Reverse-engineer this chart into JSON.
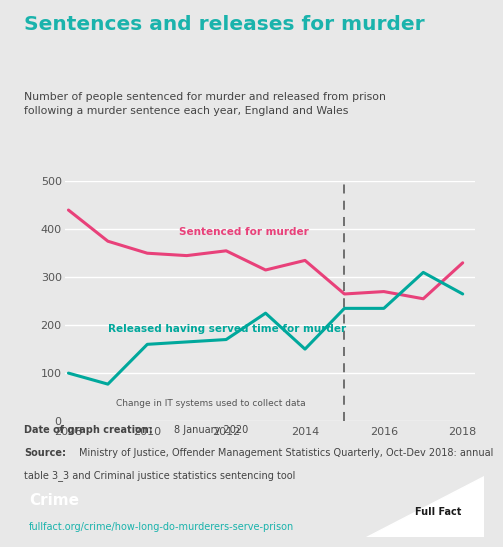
{
  "title": "Sentences and releases for murder",
  "subtitle": "Number of people sentenced for murder and released from prison\nfollowing a murder sentence each year, England and Wales",
  "title_color": "#1ab3ac",
  "subtitle_color": "#444444",
  "bg_color": "#e8e8e8",
  "chart_bg_color": "#e8e8e8",
  "footer_bg_color": "#1a1a1a",
  "footer_text_color": "#ffffff",
  "footer_url_color": "#1ab3ac",
  "footer_crime_label": "Crime",
  "footer_url": "fullfact.org/crime/how-long-do-murderers-serve-prison",
  "date_label": "Date of graph creation:",
  "date_value": "8 January 2020",
  "source_line1": "Date of graph creation: 8 January 2020",
  "source_line2": "Source: Ministry of Justice, Offender Management Statistics Quarterly, Oct-Dev 2018: annual",
  "source_line3": "table 3_3 and Criminal justice statistics sentencing tool",
  "sentenced_years": [
    2008,
    2009,
    2010,
    2011,
    2012,
    2013,
    2014,
    2015,
    2016,
    2017,
    2018
  ],
  "sentenced_values": [
    440,
    375,
    350,
    345,
    355,
    315,
    335,
    265,
    270,
    255,
    330
  ],
  "sentenced_color": "#e8417a",
  "sentenced_label": "Sentenced for murder",
  "released_years": [
    2008,
    2009,
    2010,
    2011,
    2012,
    2013,
    2014,
    2015,
    2016,
    2017,
    2018
  ],
  "released_values": [
    100,
    77,
    160,
    165,
    170,
    225,
    150,
    235,
    235,
    310,
    265
  ],
  "released_color": "#00a89c",
  "released_label": "Released having served time for murder",
  "dashed_line_x": 2015,
  "dashed_line_color": "#666666",
  "it_change_label": "Change in IT systems used to collect data",
  "ylim": [
    0,
    500
  ],
  "yticks": [
    0,
    100,
    200,
    300,
    400,
    500
  ],
  "xlim_min": 2008,
  "xlim_max": 2018,
  "xticks": [
    2008,
    2010,
    2012,
    2014,
    2016,
    2018
  ],
  "grid_color": "#ffffff",
  "line_width": 2.2
}
